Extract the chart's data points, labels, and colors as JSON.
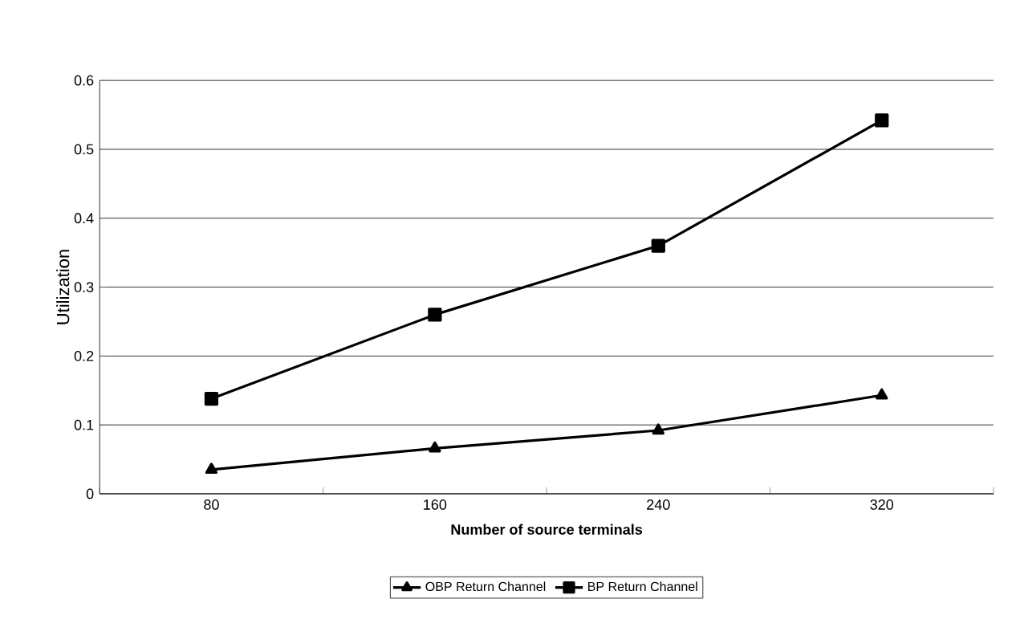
{
  "chart_data": {
    "type": "line",
    "xlabel": "Number of source terminals",
    "ylabel": "Utilization",
    "categories": [
      "80",
      "160",
      "240",
      "320"
    ],
    "series": [
      {
        "name": "OBP Return Channel",
        "color": "#000000",
        "marker": "triangle",
        "values": [
          0.035,
          0.066,
          0.092,
          0.143
        ]
      },
      {
        "name": "BP Return Channel",
        "color": "#000000",
        "marker": "square",
        "values": [
          0.138,
          0.26,
          0.36,
          0.542
        ]
      }
    ],
    "ylim": [
      0,
      0.6
    ],
    "yticks": [
      0,
      0.1,
      0.2,
      0.3,
      0.4,
      0.5,
      0.6
    ],
    "grid": "y",
    "legend": "bottom",
    "line_style": "solid"
  }
}
